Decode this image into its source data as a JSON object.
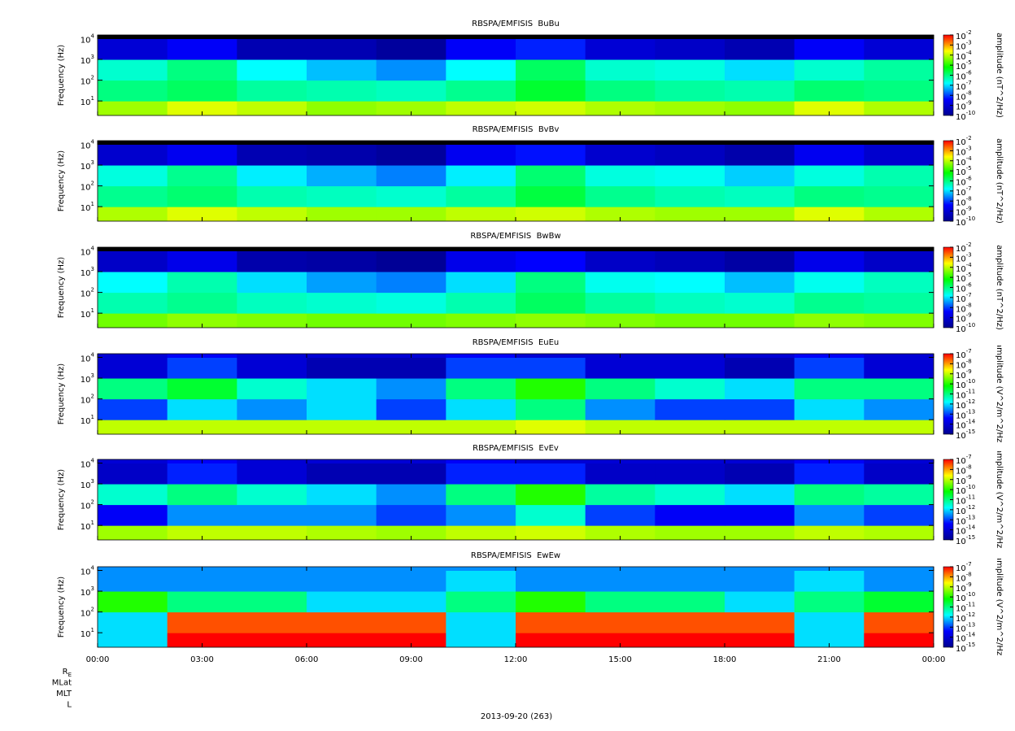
{
  "x_axis": {
    "xlim": [
      0,
      24
    ],
    "x_bins": [
      0,
      2,
      4,
      6,
      8,
      10,
      12,
      14,
      16,
      18,
      20,
      22,
      24
    ],
    "xticks": [
      {
        "value": 0,
        "label": "00:00"
      },
      {
        "value": 3,
        "label": "03:00"
      },
      {
        "value": 6,
        "label": "06:00"
      },
      {
        "value": 9,
        "label": "09:00"
      },
      {
        "value": 12,
        "label": "12:00"
      },
      {
        "value": 15,
        "label": "15:00"
      },
      {
        "value": 18,
        "label": "18:00"
      },
      {
        "value": 21,
        "label": "21:00"
      },
      {
        "value": 24,
        "label": "00:00"
      }
    ],
    "date_label": "2013-09-20 (263)",
    "ephemeris_labels": [
      {
        "label": "R",
        "subscript": "E"
      },
      {
        "label": "MLat"
      },
      {
        "label": "MLT"
      },
      {
        "label": "L"
      }
    ]
  },
  "colormap": [
    "#00008f",
    "#0000ff",
    "#00ffff",
    "#00ff00",
    "#ffff00",
    "#ff0000"
  ],
  "below_color": "#000000",
  "chart_data": [
    {
      "type": "heatmap",
      "title": "RBSPA/EMFISIS  BuBu",
      "ylabel": "Frequency (Hz)",
      "log_y": true,
      "ylim": [
        2,
        15000
      ],
      "yticks": [
        {
          "value": 10,
          "label": "10",
          "exponent": "1"
        },
        {
          "value": 100,
          "label": "10",
          "exponent": "2"
        },
        {
          "value": 1000,
          "label": "10",
          "exponent": "3"
        },
        {
          "value": 10000,
          "label": "10",
          "exponent": "4"
        }
      ],
      "y_bins": [
        2,
        10,
        100,
        1000,
        10000,
        15000
      ],
      "zlabel": "amplitude (nT^2/Hz)",
      "zlim": [
        -10,
        -2
      ],
      "zticks": [
        {
          "value": -2,
          "label": "10",
          "exponent": "-2"
        },
        {
          "value": -3,
          "label": "10",
          "exponent": "-3"
        },
        {
          "value": -4,
          "label": "10",
          "exponent": "-4"
        },
        {
          "value": -5,
          "label": "10",
          "exponent": "-5"
        },
        {
          "value": -6,
          "label": "10",
          "exponent": "-6"
        },
        {
          "value": -7,
          "label": "10",
          "exponent": "-7"
        },
        {
          "value": -8,
          "label": "10",
          "exponent": "-8"
        },
        {
          "value": -9,
          "label": "10",
          "exponent": "-9"
        },
        {
          "value": -10,
          "label": "10",
          "exponent": "-10"
        }
      ],
      "values": [
        [
          -4.2,
          -3.8,
          -4,
          -4.3,
          -4.2,
          -4,
          -3.9,
          -4.1,
          -4.2,
          -4.3,
          -3.8,
          -4.1
        ],
        [
          -6,
          -5.8,
          -6.2,
          -6.3,
          -6.4,
          -6.1,
          -5.5,
          -6,
          -6.2,
          -6.3,
          -5.9,
          -6
        ],
        [
          -6.5,
          -6,
          -6.8,
          -7.2,
          -7.5,
          -6.8,
          -5.8,
          -6.5,
          -6.6,
          -7,
          -6.5,
          -6.2
        ],
        [
          -9,
          -8.5,
          -9.5,
          -9.5,
          -9.8,
          -8.5,
          -8.2,
          -9,
          -9.2,
          -9.5,
          -8.5,
          -9
        ],
        [
          -11,
          -10.5,
          -11,
          -11,
          -11,
          -10.5,
          -11,
          -11,
          -11,
          -11,
          -10.5,
          -11
        ]
      ]
    },
    {
      "type": "heatmap",
      "title": "RBSPA/EMFISIS  BvBv",
      "ylabel": "Frequency (Hz)",
      "log_y": true,
      "ylim": [
        2,
        15000
      ],
      "yticks": [
        {
          "value": 10,
          "label": "10",
          "exponent": "1"
        },
        {
          "value": 100,
          "label": "10",
          "exponent": "2"
        },
        {
          "value": 1000,
          "label": "10",
          "exponent": "3"
        },
        {
          "value": 10000,
          "label": "10",
          "exponent": "4"
        }
      ],
      "y_bins": [
        2,
        10,
        100,
        1000,
        10000,
        15000
      ],
      "zlabel": "amplitude (nT^2/Hz)",
      "zlim": [
        -10,
        -2
      ],
      "zticks": [
        {
          "value": -2,
          "label": "10",
          "exponent": "-2"
        },
        {
          "value": -3,
          "label": "10",
          "exponent": "-3"
        },
        {
          "value": -4,
          "label": "10",
          "exponent": "-4"
        },
        {
          "value": -5,
          "label": "10",
          "exponent": "-5"
        },
        {
          "value": -6,
          "label": "10",
          "exponent": "-6"
        },
        {
          "value": -7,
          "label": "10",
          "exponent": "-7"
        },
        {
          "value": -8,
          "label": "10",
          "exponent": "-8"
        },
        {
          "value": -9,
          "label": "10",
          "exponent": "-9"
        },
        {
          "value": -10,
          "label": "10",
          "exponent": "-10"
        }
      ],
      "values": [
        [
          -4.1,
          -3.8,
          -4,
          -4.2,
          -4.2,
          -4,
          -3.9,
          -4.1,
          -4.2,
          -4.2,
          -3.8,
          -4.1
        ],
        [
          -6.1,
          -5.9,
          -6.3,
          -6.4,
          -6.5,
          -6.2,
          -5.6,
          -6.1,
          -6.3,
          -6.4,
          -6,
          -6.1
        ],
        [
          -6.6,
          -6.1,
          -6.9,
          -7.3,
          -7.6,
          -6.9,
          -5.9,
          -6.6,
          -6.7,
          -7.1,
          -6.6,
          -6.3
        ],
        [
          -9.1,
          -8.6,
          -9.5,
          -9.6,
          -9.8,
          -8.6,
          -8.3,
          -9.1,
          -9.3,
          -9.6,
          -8.6,
          -9.1
        ],
        [
          -11,
          -10.5,
          -11,
          -11,
          -11,
          -10.5,
          -11,
          -11,
          -11,
          -11,
          -10.5,
          -11
        ]
      ]
    },
    {
      "type": "heatmap",
      "title": "RBSPA/EMFISIS  BwBw",
      "ylabel": "Frequency (Hz)",
      "log_y": true,
      "ylim": [
        2,
        15000
      ],
      "yticks": [
        {
          "value": 10,
          "label": "10",
          "exponent": "1"
        },
        {
          "value": 100,
          "label": "10",
          "exponent": "2"
        },
        {
          "value": 1000,
          "label": "10",
          "exponent": "3"
        },
        {
          "value": 10000,
          "label": "10",
          "exponent": "4"
        }
      ],
      "y_bins": [
        2,
        10,
        100,
        1000,
        10000,
        15000
      ],
      "zlabel": "amplitude (nT^2/Hz)",
      "zlim": [
        -10,
        -2
      ],
      "zticks": [
        {
          "value": -2,
          "label": "10",
          "exponent": "-2"
        },
        {
          "value": -3,
          "label": "10",
          "exponent": "-3"
        },
        {
          "value": -4,
          "label": "10",
          "exponent": "-4"
        },
        {
          "value": -5,
          "label": "10",
          "exponent": "-5"
        },
        {
          "value": -6,
          "label": "10",
          "exponent": "-6"
        },
        {
          "value": -7,
          "label": "10",
          "exponent": "-7"
        },
        {
          "value": -8,
          "label": "10",
          "exponent": "-8"
        },
        {
          "value": -9,
          "label": "10",
          "exponent": "-9"
        },
        {
          "value": -10,
          "label": "10",
          "exponent": "-10"
        }
      ],
      "values": [
        [
          -4.5,
          -4.3,
          -4.4,
          -4.5,
          -4.5,
          -4.4,
          -4.3,
          -4.4,
          -4.5,
          -4.5,
          -4.3,
          -4.4
        ],
        [
          -6.3,
          -6.1,
          -6.4,
          -6.5,
          -6.6,
          -6.3,
          -5.8,
          -6.2,
          -6.4,
          -6.5,
          -6.1,
          -6.2
        ],
        [
          -6.8,
          -6.3,
          -7,
          -7.4,
          -7.6,
          -7,
          -6,
          -6.7,
          -6.8,
          -7.2,
          -6.7,
          -6.4
        ],
        [
          -9.2,
          -8.7,
          -9.6,
          -9.7,
          -9.9,
          -8.7,
          -8.4,
          -9.2,
          -9.4,
          -9.7,
          -8.7,
          -9.2
        ],
        [
          -11,
          -10.5,
          -11,
          -11,
          -11,
          -10.5,
          -11,
          -11,
          -11,
          -11,
          -10.5,
          -11
        ]
      ]
    },
    {
      "type": "heatmap",
      "title": "RBSPA/EMFISIS  EuEu",
      "ylabel": "Frequency (Hz)",
      "log_y": true,
      "ylim": [
        2,
        15000
      ],
      "yticks": [
        {
          "value": 10,
          "label": "10",
          "exponent": "1"
        },
        {
          "value": 100,
          "label": "10",
          "exponent": "2"
        },
        {
          "value": 1000,
          "label": "10",
          "exponent": "3"
        },
        {
          "value": 10000,
          "label": "10",
          "exponent": "4"
        }
      ],
      "y_bins": [
        2,
        10,
        100,
        1000,
        10000,
        15000
      ],
      "zlabel": "amplitude (V^2/m^2/Hz)",
      "zlim": [
        -15,
        -7
      ],
      "zticks": [
        {
          "value": -7,
          "label": "10",
          "exponent": "-7"
        },
        {
          "value": -8,
          "label": "10",
          "exponent": "-8"
        },
        {
          "value": -9,
          "label": "10",
          "exponent": "-9"
        },
        {
          "value": -10,
          "label": "10",
          "exponent": "-10"
        },
        {
          "value": -11,
          "label": "10",
          "exponent": "-11"
        },
        {
          "value": -12,
          "label": "10",
          "exponent": "-12"
        },
        {
          "value": -13,
          "label": "10",
          "exponent": "-13"
        },
        {
          "value": -14,
          "label": "10",
          "exponent": "-14"
        },
        {
          "value": -15,
          "label": "10",
          "exponent": "-15"
        }
      ],
      "values": [
        [
          -9,
          -9,
          -9,
          -9,
          -9,
          -9,
          -8.8,
          -9,
          -9,
          -9,
          -9,
          -9
        ],
        [
          -13,
          -12,
          -12.5,
          -12,
          -13,
          -12,
          -11,
          -12.5,
          -13,
          -13,
          -12,
          -12.5
        ],
        [
          -11,
          -10.5,
          -11.5,
          -12,
          -12.5,
          -11,
          -10,
          -11,
          -11.5,
          -12,
          -11,
          -11
        ],
        [
          -14,
          -13,
          -14,
          -14.5,
          -14.5,
          -13,
          -13,
          -14,
          -14,
          -14.5,
          -13,
          -14
        ],
        [
          -14,
          -13.5,
          -14,
          -14,
          -14,
          -13.5,
          -14,
          -14,
          -14,
          -14,
          -13.5,
          -14
        ]
      ]
    },
    {
      "type": "heatmap",
      "title": "RBSPA/EMFISIS  EvEv",
      "ylabel": "Frequency (Hz)",
      "log_y": true,
      "ylim": [
        2,
        15000
      ],
      "yticks": [
        {
          "value": 10,
          "label": "10",
          "exponent": "1"
        },
        {
          "value": 100,
          "label": "10",
          "exponent": "2"
        },
        {
          "value": 1000,
          "label": "10",
          "exponent": "3"
        },
        {
          "value": 10000,
          "label": "10",
          "exponent": "4"
        }
      ],
      "y_bins": [
        2,
        10,
        100,
        1000,
        10000,
        15000
      ],
      "zlabel": "amplitude (V^2/m^2/Hz)",
      "zlim": [
        -15,
        -7
      ],
      "zticks": [
        {
          "value": -7,
          "label": "10",
          "exponent": "-7"
        },
        {
          "value": -8,
          "label": "10",
          "exponent": "-8"
        },
        {
          "value": -9,
          "label": "10",
          "exponent": "-9"
        },
        {
          "value": -10,
          "label": "10",
          "exponent": "-10"
        },
        {
          "value": -11,
          "label": "10",
          "exponent": "-11"
        },
        {
          "value": -12,
          "label": "10",
          "exponent": "-12"
        },
        {
          "value": -13,
          "label": "10",
          "exponent": "-13"
        },
        {
          "value": -14,
          "label": "10",
          "exponent": "-14"
        },
        {
          "value": -15,
          "label": "10",
          "exponent": "-15"
        }
      ],
      "values": [
        [
          -9.2,
          -9,
          -9,
          -9.1,
          -9.2,
          -9,
          -8.9,
          -9.1,
          -9.2,
          -9.2,
          -9,
          -9.1
        ],
        [
          -13.5,
          -12.5,
          -12.5,
          -12.5,
          -13,
          -12.5,
          -11.5,
          -13,
          -13.5,
          -13.5,
          -12.5,
          -13
        ],
        [
          -11.5,
          -11,
          -11.5,
          -12,
          -12.5,
          -11,
          -10,
          -11.2,
          -11.5,
          -12,
          -11,
          -11.2
        ],
        [
          -14.2,
          -13.2,
          -14,
          -14.5,
          -14.5,
          -13.2,
          -13.2,
          -14.2,
          -14.2,
          -14.5,
          -13.2,
          -14.2
        ],
        [
          -14,
          -13.5,
          -14,
          -14,
          -14,
          -13.5,
          -14,
          -14,
          -14,
          -14,
          -13.5,
          -14
        ]
      ]
    },
    {
      "type": "heatmap",
      "title": "RBSPA/EMFISIS  EwEw",
      "ylabel": "Frequency (Hz)",
      "log_y": true,
      "ylim": [
        2,
        15000
      ],
      "yticks": [
        {
          "value": 10,
          "label": "10",
          "exponent": "1"
        },
        {
          "value": 100,
          "label": "10",
          "exponent": "2"
        },
        {
          "value": 1000,
          "label": "10",
          "exponent": "3"
        },
        {
          "value": 10000,
          "label": "10",
          "exponent": "4"
        }
      ],
      "y_bins": [
        2,
        10,
        100,
        1000,
        10000,
        15000
      ],
      "zlabel": "amplitude (V^2/m^2/Hz)",
      "zlim": [
        -15,
        -7
      ],
      "zticks": [
        {
          "value": -7,
          "label": "10",
          "exponent": "-7"
        },
        {
          "value": -8,
          "label": "10",
          "exponent": "-8"
        },
        {
          "value": -9,
          "label": "10",
          "exponent": "-9"
        },
        {
          "value": -10,
          "label": "10",
          "exponent": "-10"
        },
        {
          "value": -11,
          "label": "10",
          "exponent": "-11"
        },
        {
          "value": -12,
          "label": "10",
          "exponent": "-12"
        },
        {
          "value": -13,
          "label": "10",
          "exponent": "-13"
        },
        {
          "value": -14,
          "label": "10",
          "exponent": "-14"
        },
        {
          "value": -15,
          "label": "10",
          "exponent": "-15"
        }
      ],
      "values": [
        [
          -12,
          -7,
          -7,
          -7,
          -7,
          -12,
          -7,
          -7,
          -7,
          -7,
          -12,
          -7
        ],
        [
          -12,
          -7.5,
          -7.5,
          -7.5,
          -7.5,
          -12,
          -7.5,
          -7.5,
          -7.5,
          -7.5,
          -12,
          -7.5
        ],
        [
          -10,
          -11,
          -11,
          -12,
          -12,
          -11,
          -10,
          -11,
          -11,
          -12,
          -11,
          -10.5
        ],
        [
          -12.5,
          -12.5,
          -12.5,
          -12.5,
          -12.5,
          -12,
          -12.5,
          -12.5,
          -12.5,
          -12.5,
          -12,
          -12.5
        ],
        [
          -12.5,
          -12.5,
          -12.5,
          -12.5,
          -12.5,
          -12.5,
          -12.5,
          -12.5,
          -12.5,
          -12.5,
          -12.5,
          -12.5
        ]
      ]
    }
  ]
}
